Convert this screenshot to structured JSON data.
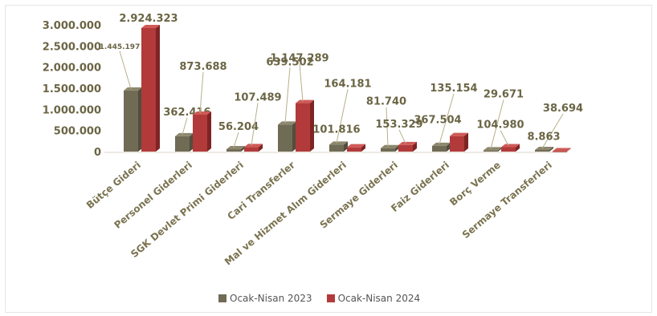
{
  "colors": {
    "series_2023": "#6f6b55",
    "series_2023_top": "#8c876d",
    "series_2023_side": "#514e3e",
    "series_2024": "#b23a3a",
    "series_2024_top": "#cf5a57",
    "series_2024_side": "#7f2424",
    "label_text": "#6b6545",
    "category_text": "#7a7350",
    "leader_line": "#b7b08a"
  },
  "chart_data": {
    "type": "bar",
    "style": "3d-clustered-column",
    "categories": [
      "Bütçe Gideri",
      "Personel Giderleri",
      "SGK Devlet Primi Giderleri",
      "Cari Transferler",
      "Mal ve Hizmet Alım Giderleri",
      "Sermaye Giderleri",
      "Faiz Giderleri",
      "Borç Verme",
      "Sermaye Transferleri"
    ],
    "series": [
      {
        "name": "Ocak-Nisan 2023",
        "values": [
          1445197,
          362416,
          56204,
          639502,
          164181,
          81740,
          135154,
          29671,
          38694
        ],
        "labels": [
          "1.445.197",
          "362.416",
          "56.204",
          "639.502",
          "164.181",
          "81.740",
          "135.154",
          "29.671",
          "38.694"
        ]
      },
      {
        "name": "Ocak-Nisan 2024",
        "values": [
          2924323,
          873688,
          107489,
          1147289,
          101816,
          153329,
          367504,
          104980,
          8863
        ],
        "labels": [
          "2.924.323",
          "873.688",
          "107.489",
          "1.147.289",
          "101.816",
          "153.329",
          "367.504",
          "104.980",
          "8.863"
        ]
      }
    ],
    "yticks": [
      "0",
      "500.000",
      "1.000.000",
      "1.500.000",
      "2.000.000",
      "2.500.000",
      "3.000.000"
    ],
    "ytick_values": [
      0,
      500000,
      1000000,
      1500000,
      2000000,
      2500000,
      3000000
    ],
    "ylim": [
      0,
      3000000
    ],
    "grid": false,
    "legend_position": "bottom"
  }
}
